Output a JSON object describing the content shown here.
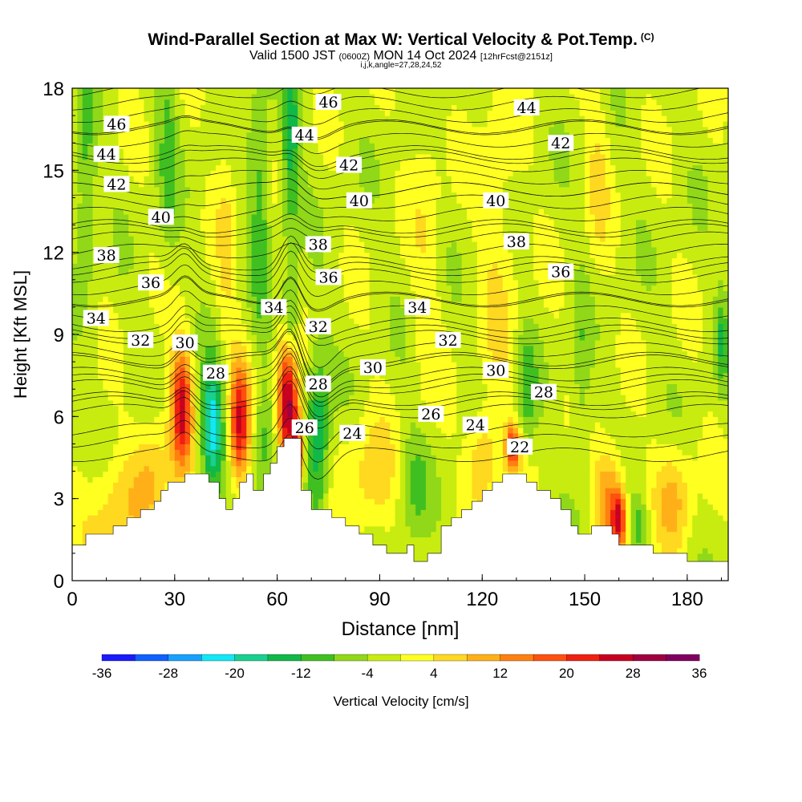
{
  "header": {
    "title": "Wind-Parallel Section at Max W: Vertical Velocity & Pot.Temp.",
    "copyright": "(C)",
    "valid_prefix": "Valid 1500 JST",
    "valid_utc": "(0600Z)",
    "valid_date": "MON 14 Oct 2024",
    "forecast": "[12hrFcst@2151z]",
    "indices": "i,j,k,angle=27,28,24,52"
  },
  "chart_data": {
    "type": "heatmap",
    "title": "Wind-Parallel Section at Max W: Vertical Velocity & Pot.Temp.",
    "xlabel": "Distance [nm]",
    "ylabel": "Height [Kft MSL]",
    "xlim": [
      0,
      192
    ],
    "ylim": [
      0,
      18
    ],
    "xticks": [
      0,
      30,
      60,
      90,
      120,
      150,
      180
    ],
    "yticks": [
      0,
      3,
      6,
      9,
      12,
      15,
      18
    ],
    "colorbar": {
      "label": "Vertical Velocity [cm/s]",
      "ticks": [
        -36,
        -28,
        -20,
        -12,
        -4,
        4,
        12,
        20,
        28,
        36
      ],
      "colors": [
        "#1a1aff",
        "#1060ff",
        "#18a0ff",
        "#10e8f8",
        "#18d090",
        "#10b848",
        "#40c020",
        "#90d818",
        "#c8ec10",
        "#ffff20",
        "#ffd820",
        "#ffb018",
        "#ff8010",
        "#ff5010",
        "#f02010",
        "#c80020",
        "#a00040",
        "#800060"
      ]
    },
    "terrain": [
      [
        0,
        1.3
      ],
      [
        4,
        1.3
      ],
      [
        4,
        1.7
      ],
      [
        12,
        1.7
      ],
      [
        12,
        2.0
      ],
      [
        16,
        2.0
      ],
      [
        16,
        2.3
      ],
      [
        20,
        2.3
      ],
      [
        20,
        2.6
      ],
      [
        24,
        2.6
      ],
      [
        24,
        2.9
      ],
      [
        26,
        2.9
      ],
      [
        26,
        3.3
      ],
      [
        28,
        3.3
      ],
      [
        28,
        3.6
      ],
      [
        33,
        3.6
      ],
      [
        33,
        3.9
      ],
      [
        40,
        3.9
      ],
      [
        40,
        3.6
      ],
      [
        43,
        3.6
      ],
      [
        43,
        3.0
      ],
      [
        45,
        3.0
      ],
      [
        45,
        2.6
      ],
      [
        47,
        2.6
      ],
      [
        47,
        3.0
      ],
      [
        49,
        3.0
      ],
      [
        49,
        3.6
      ],
      [
        51,
        3.6
      ],
      [
        51,
        3.9
      ],
      [
        53,
        3.9
      ],
      [
        53,
        3.3
      ],
      [
        56,
        3.3
      ],
      [
        56,
        3.9
      ],
      [
        58,
        3.9
      ],
      [
        58,
        4.3
      ],
      [
        60,
        4.3
      ],
      [
        60,
        4.9
      ],
      [
        62,
        4.9
      ],
      [
        62,
        5.2
      ],
      [
        67,
        5.2
      ],
      [
        67,
        3.3
      ],
      [
        70,
        3.3
      ],
      [
        70,
        2.6
      ],
      [
        76,
        2.6
      ],
      [
        76,
        2.3
      ],
      [
        80,
        2.3
      ],
      [
        80,
        2.0
      ],
      [
        84,
        2.0
      ],
      [
        84,
        1.7
      ],
      [
        88,
        1.7
      ],
      [
        88,
        1.3
      ],
      [
        92,
        1.3
      ],
      [
        92,
        1.0
      ],
      [
        98,
        1.0
      ],
      [
        98,
        1.3
      ],
      [
        100,
        1.3
      ],
      [
        100,
        0.7
      ],
      [
        104,
        0.7
      ],
      [
        104,
        1.0
      ],
      [
        108,
        1.0
      ],
      [
        108,
        2.0
      ],
      [
        111,
        2.0
      ],
      [
        111,
        2.3
      ],
      [
        114,
        2.3
      ],
      [
        114,
        2.6
      ],
      [
        117,
        2.6
      ],
      [
        117,
        2.9
      ],
      [
        120,
        2.9
      ],
      [
        120,
        3.3
      ],
      [
        123,
        3.3
      ],
      [
        123,
        3.6
      ],
      [
        126,
        3.6
      ],
      [
        126,
        3.9
      ],
      [
        133,
        3.9
      ],
      [
        133,
        3.6
      ],
      [
        136,
        3.6
      ],
      [
        136,
        3.3
      ],
      [
        140,
        3.3
      ],
      [
        140,
        3.0
      ],
      [
        143,
        3.0
      ],
      [
        143,
        2.6
      ],
      [
        146,
        2.6
      ],
      [
        146,
        2.0
      ],
      [
        148,
        2.0
      ],
      [
        148,
        1.7
      ],
      [
        152,
        1.7
      ],
      [
        152,
        2.0
      ],
      [
        158,
        2.0
      ],
      [
        158,
        1.7
      ],
      [
        160,
        1.7
      ],
      [
        160,
        1.3
      ],
      [
        170,
        1.3
      ],
      [
        170,
        1.0
      ],
      [
        180,
        1.0
      ],
      [
        180,
        0.7
      ],
      [
        192,
        0.7
      ]
    ],
    "theta_contours": [
      {
        "label": "22",
        "base": 4.6,
        "label_x": 131,
        "label_y": 4.9
      },
      {
        "label": "24",
        "base": 5.1,
        "label_x": 118,
        "label_y": 5.7
      },
      {
        "label": "26",
        "base": 5.5,
        "label_x": 105,
        "label_y": 6.1
      },
      {
        "label": "28",
        "base": 6.5,
        "label_x": 42,
        "label_y": 7.6
      },
      {
        "label": "30",
        "base": 7.3,
        "label_x": 88,
        "label_y": 7.8
      },
      {
        "label": "32",
        "base": 8.1,
        "label_x": 110,
        "label_y": 8.8
      },
      {
        "label": "34",
        "base": 9.1,
        "label_x": 101,
        "label_y": 10.0
      },
      {
        "label": "36",
        "base": 10.3,
        "label_x": 157,
        "label_y": 11.1
      },
      {
        "label": "38",
        "base": 11.4,
        "label_x": 131,
        "label_y": 12.1
      },
      {
        "label": "40",
        "base": 12.8,
        "label_x": 123,
        "label_y": 13.6
      },
      {
        "label": "42",
        "base": 14.3,
        "label_x": 145,
        "label_y": 15.6
      },
      {
        "label": "44",
        "base": 15.5,
        "label_x": 135,
        "label_y": 16.7
      },
      {
        "label": "46",
        "base": 16.6,
        "label_x": 75,
        "label_y": 17.5
      }
    ],
    "contour_labels": [
      {
        "text": "46",
        "x": 13,
        "y": 16.7
      },
      {
        "text": "44",
        "x": 10,
        "y": 15.6
      },
      {
        "text": "42",
        "x": 13,
        "y": 14.5
      },
      {
        "text": "40",
        "x": 26,
        "y": 13.3
      },
      {
        "text": "38",
        "x": 10,
        "y": 11.9
      },
      {
        "text": "36",
        "x": 23,
        "y": 10.9
      },
      {
        "text": "34",
        "x": 7,
        "y": 9.6
      },
      {
        "text": "32",
        "x": 20,
        "y": 8.8
      },
      {
        "text": "30",
        "x": 33,
        "y": 8.7
      },
      {
        "text": "28",
        "x": 42,
        "y": 7.6
      },
      {
        "text": "34",
        "x": 59,
        "y": 10.0
      },
      {
        "text": "32",
        "x": 72,
        "y": 9.3
      },
      {
        "text": "28",
        "x": 72,
        "y": 7.2
      },
      {
        "text": "26",
        "x": 68,
        "y": 5.6
      },
      {
        "text": "24",
        "x": 82,
        "y": 5.4
      },
      {
        "text": "46",
        "x": 75,
        "y": 17.5
      },
      {
        "text": "44",
        "x": 68,
        "y": 16.3
      },
      {
        "text": "42",
        "x": 81,
        "y": 15.2
      },
      {
        "text": "40",
        "x": 84,
        "y": 13.9
      },
      {
        "text": "38",
        "x": 72,
        "y": 12.3
      },
      {
        "text": "36",
        "x": 75,
        "y": 11.1
      },
      {
        "text": "30",
        "x": 88,
        "y": 7.8
      },
      {
        "text": "34",
        "x": 101,
        "y": 10.0
      },
      {
        "text": "32",
        "x": 110,
        "y": 8.8
      },
      {
        "text": "26",
        "x": 105,
        "y": 6.1
      },
      {
        "text": "24",
        "x": 118,
        "y": 5.7
      },
      {
        "text": "22",
        "x": 131,
        "y": 4.9
      },
      {
        "text": "44",
        "x": 133,
        "y": 17.3
      },
      {
        "text": "42",
        "x": 143,
        "y": 16.0
      },
      {
        "text": "40",
        "x": 124,
        "y": 13.9
      },
      {
        "text": "38",
        "x": 130,
        "y": 12.4
      },
      {
        "text": "36",
        "x": 143,
        "y": 11.3
      },
      {
        "text": "30",
        "x": 124,
        "y": 7.7
      },
      {
        "text": "28",
        "x": 138,
        "y": 6.9
      }
    ],
    "w_features": [
      {
        "x": 32,
        "y": 6.3,
        "sx": 2.2,
        "sy": 1.6,
        "v": 26
      },
      {
        "x": 41,
        "y": 5.6,
        "sx": 2.4,
        "sy": 1.6,
        "v": -22
      },
      {
        "x": 49,
        "y": 5.7,
        "sx": 2.0,
        "sy": 1.6,
        "v": 26
      },
      {
        "x": 56,
        "y": 5.0,
        "sx": 2.0,
        "sy": 1.5,
        "v": -8
      },
      {
        "x": 63,
        "y": 6.4,
        "sx": 2.0,
        "sy": 1.7,
        "v": 34
      },
      {
        "x": 66,
        "y": 4.8,
        "sx": 1.2,
        "sy": 1.0,
        "v": 22
      },
      {
        "x": 72,
        "y": 5.2,
        "sx": 2.4,
        "sy": 2.4,
        "v": -14
      },
      {
        "x": 64,
        "y": 9.4,
        "sx": 1.6,
        "sy": 1.2,
        "v": -12
      },
      {
        "x": 12,
        "y": 2.6,
        "sx": 7,
        "sy": 1.4,
        "v": 8
      },
      {
        "x": 24,
        "y": 4.2,
        "sx": 4,
        "sy": 1.6,
        "v": 8
      },
      {
        "x": 55,
        "y": 14,
        "sx": 2.0,
        "sy": 3.5,
        "v": -9
      },
      {
        "x": 64,
        "y": 16,
        "sx": 2.0,
        "sy": 2.6,
        "v": -12
      },
      {
        "x": 28,
        "y": 16,
        "sx": 2.2,
        "sy": 3.0,
        "v": -7
      },
      {
        "x": 4,
        "y": 14.5,
        "sx": 2.0,
        "sy": 2.6,
        "v": -9
      },
      {
        "x": 45,
        "y": 12,
        "sx": 2.0,
        "sy": 4.0,
        "v": 5
      },
      {
        "x": 88,
        "y": 3.6,
        "sx": 6,
        "sy": 1.6,
        "v": 8
      },
      {
        "x": 100,
        "y": 3.5,
        "sx": 3.6,
        "sy": 1.6,
        "v": -8
      },
      {
        "x": 104,
        "y": 13,
        "sx": 3.2,
        "sy": 6,
        "v": 4
      },
      {
        "x": 125,
        "y": 12,
        "sx": 4.0,
        "sy": 6,
        "v": 5
      },
      {
        "x": 120,
        "y": 4.5,
        "sx": 3,
        "sy": 1.2,
        "v": 10
      },
      {
        "x": 129,
        "y": 4.9,
        "sx": 1.6,
        "sy": 0.6,
        "v": 20
      },
      {
        "x": 133,
        "y": 7.0,
        "sx": 2.0,
        "sy": 1.5,
        "v": -9
      },
      {
        "x": 149,
        "y": 7.2,
        "sx": 2.0,
        "sy": 2.5,
        "v": -6
      },
      {
        "x": 157,
        "y": 3.2,
        "sx": 3,
        "sy": 1.3,
        "v": 14
      },
      {
        "x": 160,
        "y": 2.2,
        "sx": 1.6,
        "sy": 0.8,
        "v": 24
      },
      {
        "x": 166,
        "y": 2.0,
        "sx": 2.0,
        "sy": 0.8,
        "v": -8
      },
      {
        "x": 176,
        "y": 3.0,
        "sx": 4,
        "sy": 1.4,
        "v": 10
      },
      {
        "x": 154,
        "y": 15,
        "sx": 2.5,
        "sy": 3,
        "v": 5
      },
      {
        "x": 190,
        "y": 8.8,
        "sx": 1.2,
        "sy": 1.2,
        "v": -9
      }
    ]
  }
}
